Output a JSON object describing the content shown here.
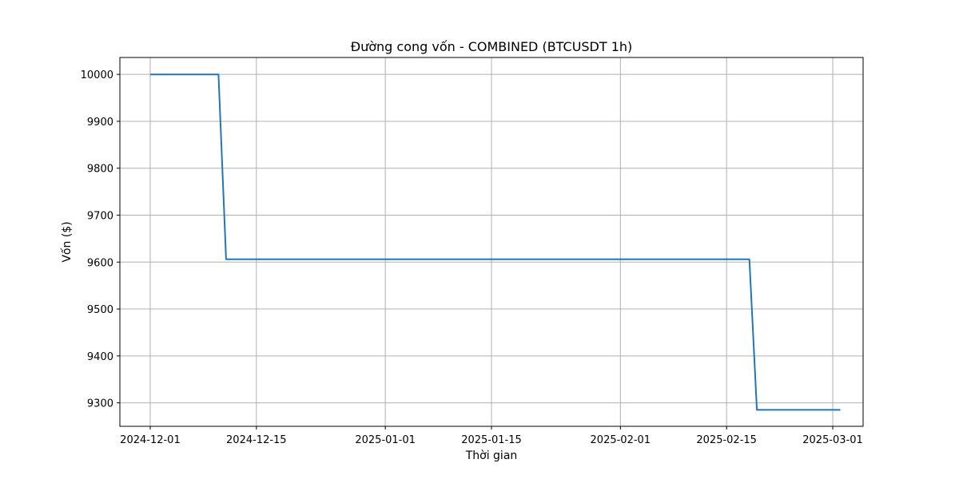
{
  "chart_data": {
    "type": "line",
    "title": "Đường cong vốn - COMBINED (BTCUSDT 1h)",
    "xlabel": "Thời gian",
    "ylabel": "Vốn ($)",
    "grid": true,
    "x_ticks": [
      "2024-12-01",
      "2024-12-15",
      "2025-01-01",
      "2025-01-15",
      "2025-02-01",
      "2025-02-15",
      "2025-03-01"
    ],
    "y_ticks": [
      9300,
      9400,
      9500,
      9600,
      9700,
      9800,
      9900,
      10000
    ],
    "xlim": [
      "2024-11-27",
      "2025-03-05"
    ],
    "ylim": [
      9250,
      10036
    ],
    "series": [
      {
        "color": "#1f77b4",
        "points": [
          {
            "x": "2024-12-01",
            "y": 10000
          },
          {
            "x": "2024-12-10",
            "y": 10000
          },
          {
            "x": "2024-12-11",
            "y": 9606
          },
          {
            "x": "2025-02-18",
            "y": 9606
          },
          {
            "x": "2025-02-19",
            "y": 9285
          },
          {
            "x": "2025-03-02",
            "y": 9285
          }
        ]
      }
    ]
  }
}
